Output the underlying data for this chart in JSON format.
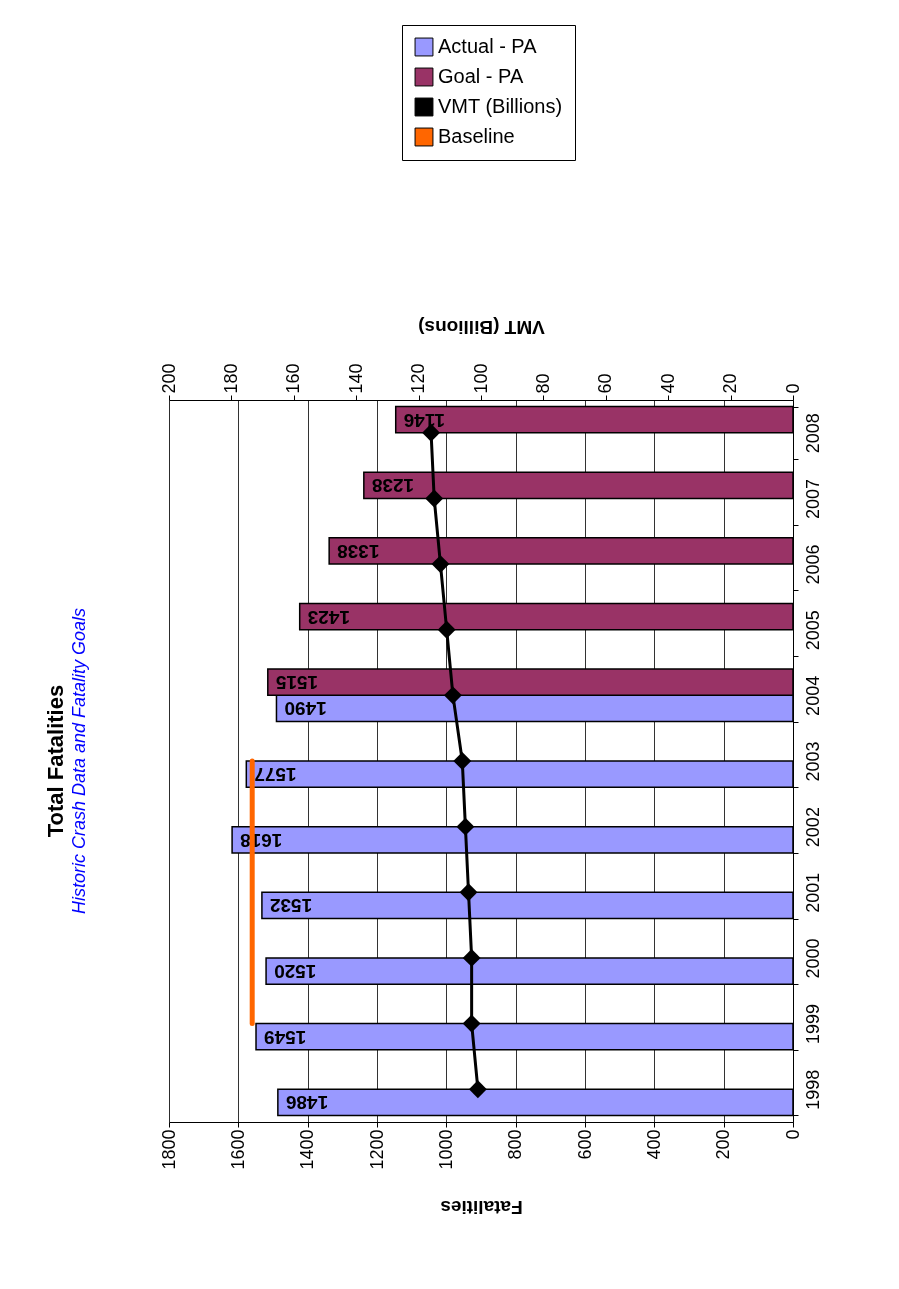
{
  "chart_data": {
    "type": "bar",
    "title": "Total Fatalities",
    "subtitle": "Historic Crash Data and Fatality Goals",
    "orientation": "horizontal",
    "categories": [
      "2008",
      "2007",
      "2006",
      "2005",
      "2004",
      "2003",
      "2002",
      "2001",
      "2000",
      "1999",
      "1998"
    ],
    "xlabel": "Fatalities",
    "x2label": "VMT (Billions)",
    "xlim": [
      1800,
      0
    ],
    "xticks": [
      1800,
      1600,
      1400,
      1200,
      1000,
      800,
      600,
      400,
      200,
      0
    ],
    "x2lim": [
      200,
      0
    ],
    "x2ticks": [
      200,
      180,
      160,
      140,
      120,
      100,
      80,
      60,
      40,
      20,
      0
    ],
    "grid": "x",
    "legend": "top right",
    "series": [
      {
        "name": "Actual - PA",
        "color": "#9999ff",
        "values": [
          null,
          null,
          null,
          null,
          1490,
          1577,
          1618,
          1532,
          1520,
          1549,
          1486
        ],
        "value_labels": [
          null,
          null,
          null,
          null,
          "1490",
          "1577",
          "1618",
          "1532",
          "1520",
          "1549",
          "1486"
        ]
      },
      {
        "name": "Goal - PA",
        "color": "#993366",
        "values": [
          1146,
          1238,
          1338,
          1423,
          1515,
          null,
          null,
          null,
          null,
          null,
          null
        ],
        "value_labels": [
          "1146",
          "1238",
          "1338",
          "1423",
          "1515",
          null,
          null,
          null,
          null,
          null,
          null
        ]
      },
      {
        "name": "VMT (Billions)",
        "type": "line",
        "axis": "x2",
        "marker": "diamond",
        "color": "#000000",
        "values": [
          116,
          115,
          113,
          111,
          109,
          106,
          105,
          104,
          103,
          103,
          101
        ]
      },
      {
        "name": "Baseline",
        "type": "line",
        "marker": "none",
        "color": "#ff6600",
        "values": [
          null,
          null,
          null,
          null,
          null,
          1560,
          1560,
          1560,
          1560,
          1560,
          null
        ]
      }
    ]
  }
}
